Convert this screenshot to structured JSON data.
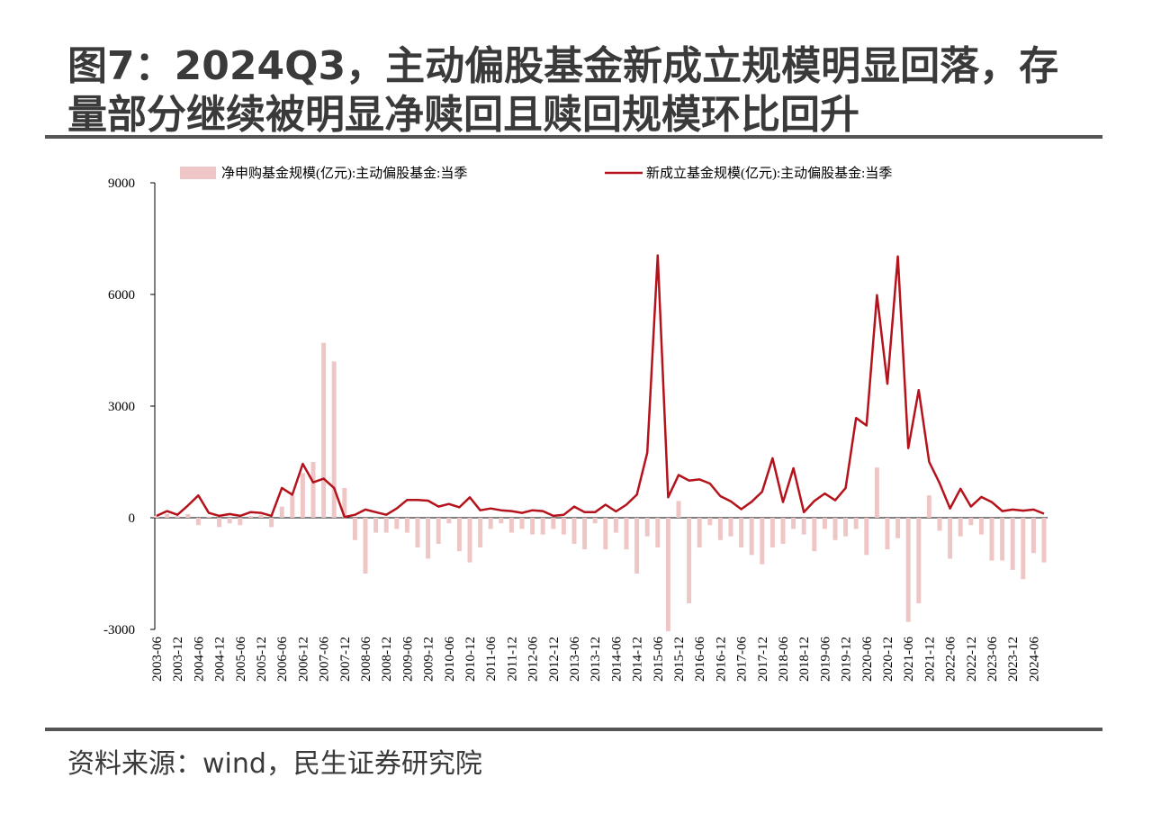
{
  "chart_data": {
    "type": "combo",
    "title": [
      "图7：2024Q3，主动偏股基金新成立规模明显回落，存",
      "量部分继续被明显净赎回且赎回规模环比回升"
    ],
    "source": "资料来源：wind，民生证券研究院",
    "categories": [
      "2003-06",
      null,
      "2003-12",
      null,
      "2004-06",
      null,
      "2004-12",
      null,
      "2005-06",
      null,
      "2005-12",
      null,
      "2006-06",
      null,
      "2006-12",
      null,
      "2007-06",
      null,
      "2007-12",
      null,
      "2008-06",
      null,
      "2008-12",
      null,
      "2009-06",
      null,
      "2009-12",
      null,
      "2010-06",
      null,
      "2010-12",
      null,
      "2011-06",
      null,
      "2011-12",
      null,
      "2012-06",
      null,
      "2012-12",
      null,
      "2013-06",
      null,
      "2013-12",
      null,
      "2014-06",
      null,
      "2014-12",
      null,
      "2015-06",
      null,
      "2015-12",
      null,
      "2016-06",
      null,
      "2016-12",
      null,
      "2017-06",
      null,
      "2017-12",
      null,
      "2018-06",
      null,
      "2018-12",
      null,
      "2019-06",
      null,
      "2019-12",
      null,
      "2020-06",
      null,
      "2020-12",
      null,
      "2021-06",
      null,
      "2021-12",
      null,
      "2022-06",
      null,
      "2022-12",
      null,
      "2023-06",
      null,
      "2023-12",
      null,
      "2024-06",
      null
    ],
    "series": [
      {
        "name": "净申购基金规模(亿元):主动偏股基金:当季",
        "type": "bar",
        "color": "#efc6c6",
        "values": [
          50,
          100,
          50,
          100,
          -200,
          30,
          -250,
          -150,
          -200,
          50,
          80,
          -250,
          300,
          600,
          1200,
          1500,
          4700,
          4200,
          800,
          -600,
          -1500,
          -400,
          -400,
          -300,
          -400,
          -800,
          -1100,
          -700,
          -150,
          -900,
          -1200,
          -800,
          -300,
          -150,
          -400,
          -300,
          -450,
          -450,
          -300,
          -450,
          -700,
          -850,
          -150,
          -850,
          -400,
          -850,
          -1500,
          -500,
          -800,
          -3050,
          450,
          -2300,
          -800,
          -200,
          -600,
          -500,
          -800,
          -1000,
          -1250,
          -800,
          -700,
          -300,
          -450,
          -900,
          -300,
          -600,
          -500,
          -300,
          -1000,
          1350,
          -850,
          -550,
          -2800,
          -2300,
          600,
          -350,
          -1100,
          -500,
          -200,
          -450,
          -1150,
          -1150,
          -1400,
          -1650,
          -950,
          -1200
        ]
      },
      {
        "name": "新成立基金规模(亿元):主动偏股基金:当季",
        "type": "line",
        "color": "#b5121b",
        "values": [
          50,
          180,
          80,
          330,
          600,
          130,
          50,
          100,
          50,
          150,
          130,
          50,
          800,
          620,
          1450,
          950,
          1050,
          800,
          20,
          80,
          220,
          150,
          80,
          250,
          480,
          480,
          460,
          300,
          370,
          280,
          550,
          200,
          250,
          200,
          180,
          130,
          200,
          180,
          50,
          80,
          300,
          150,
          150,
          350,
          170,
          350,
          620,
          1750,
          7050,
          550,
          1150,
          1000,
          1030,
          920,
          580,
          440,
          230,
          430,
          700,
          1600,
          420,
          1330,
          150,
          450,
          650,
          470,
          800,
          2680,
          2480,
          5980,
          3600,
          7020,
          1870,
          3430,
          1500,
          930,
          250,
          780,
          300,
          560,
          420,
          180,
          220,
          190,
          220,
          110
        ]
      }
    ],
    "ylim": [
      -3000,
      9000
    ],
    "yticks": [
      -3000,
      0,
      3000,
      6000,
      9000
    ]
  }
}
